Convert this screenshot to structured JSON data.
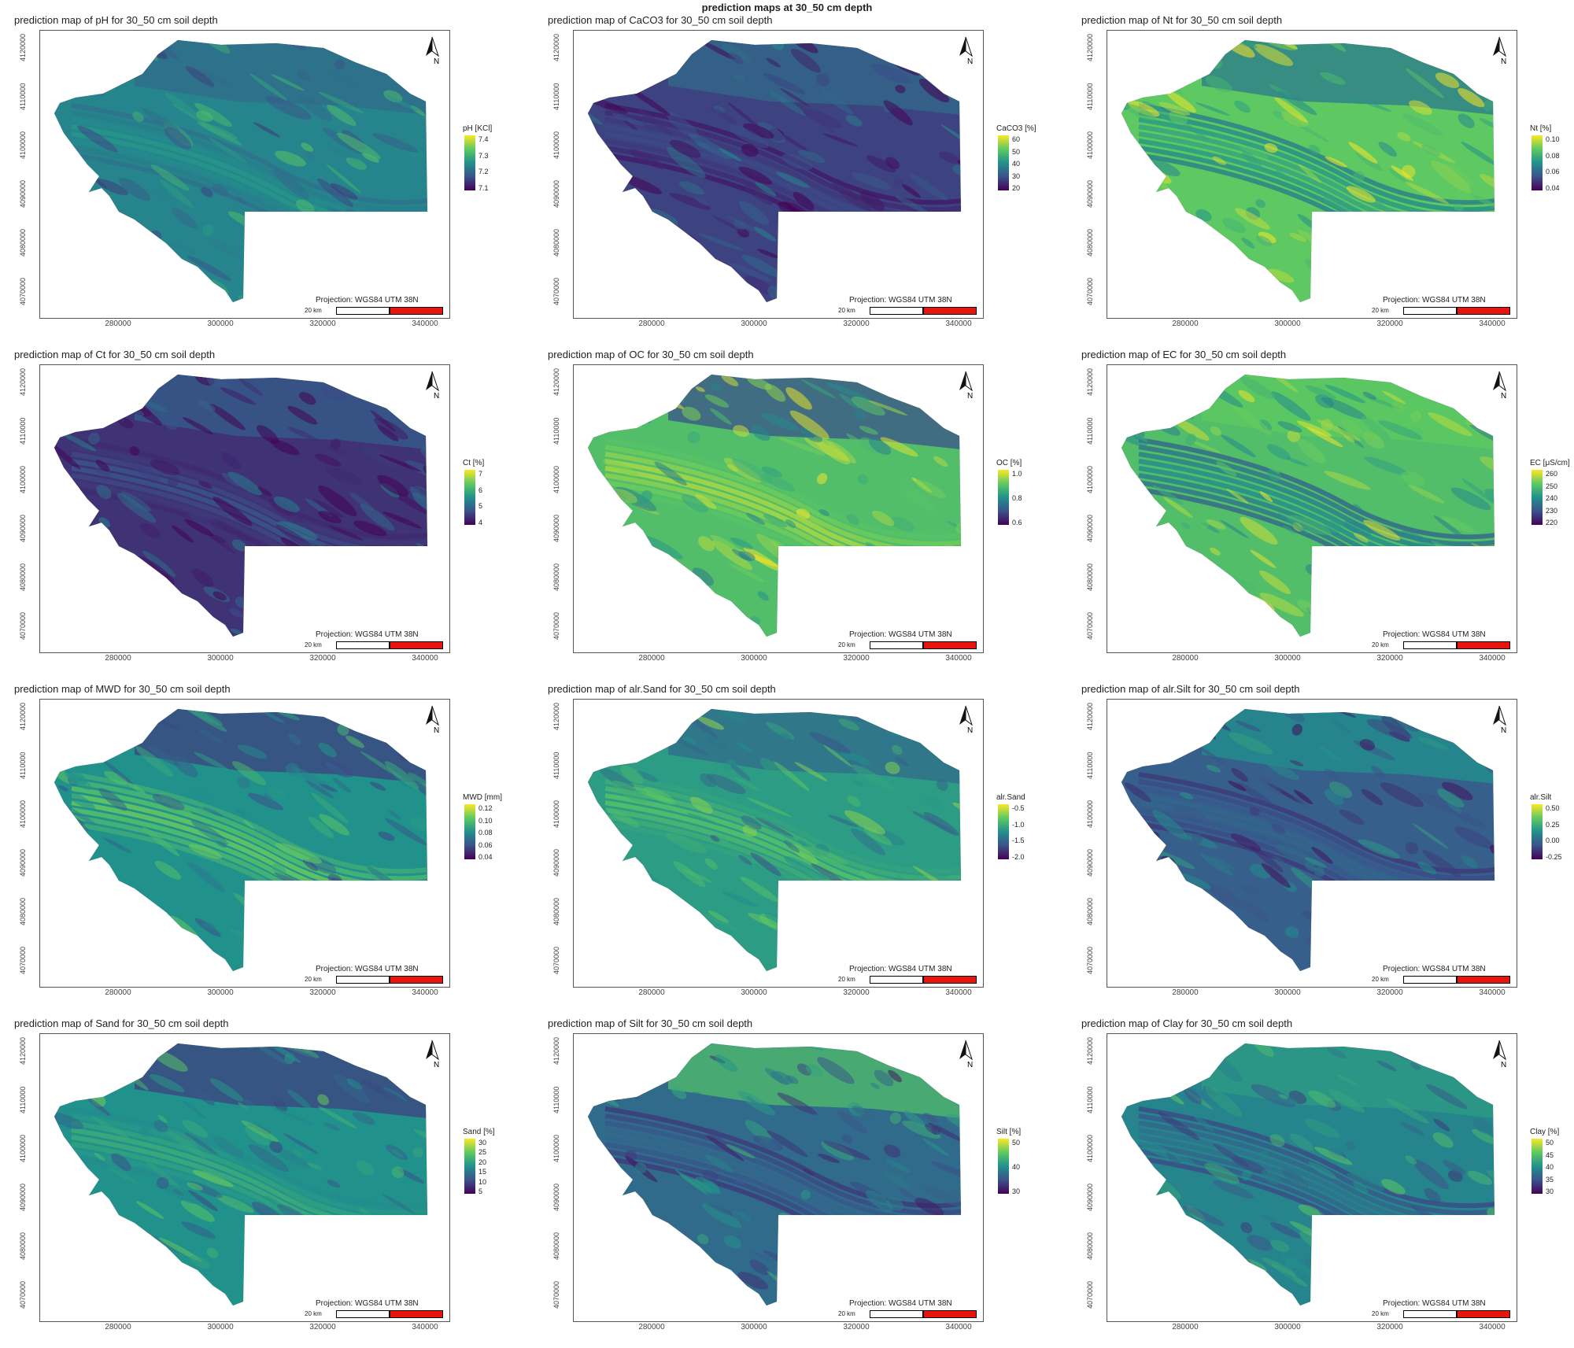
{
  "figure_title": "prediction maps at 30_50 cm depth",
  "projection_label": "Projection: WGS84 UTM 38N",
  "scale_label": "20 km",
  "north_label": "N",
  "x_ticks": [
    "280000",
    "300000",
    "320000",
    "340000"
  ],
  "y_ticks": [
    "4120000",
    "4110000",
    "4100000",
    "4090000",
    "4080000",
    "4070000"
  ],
  "colors": {
    "viridis_high": "#fde725",
    "viridis_mid_high": "#5ec962",
    "viridis_mid": "#21918c",
    "viridis_mid_low": "#3b528b",
    "viridis_low": "#440154",
    "scale_red": "#e8150f"
  },
  "panels": [
    {
      "title": "prediction map of pH for 30_50 cm soil depth",
      "legend_title": "pH [KCl]",
      "legend_ticks": [
        "7.4",
        "7.3",
        "7.2",
        "7.1"
      ],
      "tone": [
        0.45,
        0.55,
        0.35
      ]
    },
    {
      "title": "prediction map of CaCO3 for 30_50 cm soil depth",
      "legend_title": "CaCO3 [%]",
      "legend_ticks": [
        "60",
        "50",
        "40",
        "30",
        "20"
      ],
      "tone": [
        0.2,
        0.25,
        0.35
      ]
    },
    {
      "title": "prediction map of Nt for 30_50 cm soil depth",
      "legend_title": "Nt [%]",
      "legend_ticks": [
        "0.10",
        "0.08",
        "0.06",
        "0.04"
      ],
      "tone": [
        0.75,
        0.6,
        0.4
      ]
    },
    {
      "title": "prediction map of Ct for 30_50 cm soil depth",
      "legend_title": "Ct [%]",
      "legend_ticks": [
        "7",
        "6",
        "5",
        "4"
      ],
      "tone": [
        0.15,
        0.3,
        0.3
      ]
    },
    {
      "title": "prediction map of OC for 30_50 cm soil depth",
      "legend_title": "OC [%]",
      "legend_ticks": [
        "1.0",
        "0.8",
        "0.6"
      ],
      "tone": [
        0.7,
        0.9,
        0.25
      ]
    },
    {
      "title": "prediction map of EC for 30_50 cm soil depth",
      "legend_title": "EC [μS/cm]",
      "legend_ticks": [
        "260",
        "250",
        "240",
        "230",
        "220"
      ],
      "tone": [
        0.7,
        0.5,
        0.75
      ]
    },
    {
      "title": "prediction map of MWD for 30_50 cm soil depth",
      "legend_title": "MWD [mm]",
      "legend_ticks": [
        "0.12",
        "0.10",
        "0.08",
        "0.06",
        "0.04"
      ],
      "tone": [
        0.5,
        0.8,
        0.2
      ]
    },
    {
      "title": "prediction map of alr.Sand for 30_50 cm soil depth",
      "legend_title": "alr.Sand",
      "legend_ticks": [
        "-0.5",
        "-1.0",
        "-1.5",
        "-2.0"
      ],
      "tone": [
        0.55,
        0.75,
        0.35
      ]
    },
    {
      "title": "prediction map of alr.Silt for 30_50 cm soil depth",
      "legend_title": "alr.Silt",
      "legend_ticks": [
        "0.50",
        "0.25",
        "0.00",
        "-0.25"
      ],
      "tone": [
        0.3,
        0.35,
        0.5
      ]
    },
    {
      "title": "prediction map of Sand for 30_50 cm soil depth",
      "legend_title": "Sand [%]",
      "legend_ticks": [
        "30",
        "25",
        "20",
        "15",
        "10",
        "5"
      ],
      "tone": [
        0.5,
        0.65,
        0.2
      ]
    },
    {
      "title": "prediction map of Silt for 30_50 cm soil depth",
      "legend_title": "Silt [%]",
      "legend_ticks": [
        "50",
        "40",
        "30"
      ],
      "tone": [
        0.35,
        0.35,
        0.7
      ]
    },
    {
      "title": "prediction map of Clay for 30_50 cm soil depth",
      "legend_title": "Clay [%]",
      "legend_ticks": [
        "50",
        "45",
        "40",
        "35",
        "30"
      ],
      "tone": [
        0.45,
        0.4,
        0.55
      ]
    }
  ]
}
